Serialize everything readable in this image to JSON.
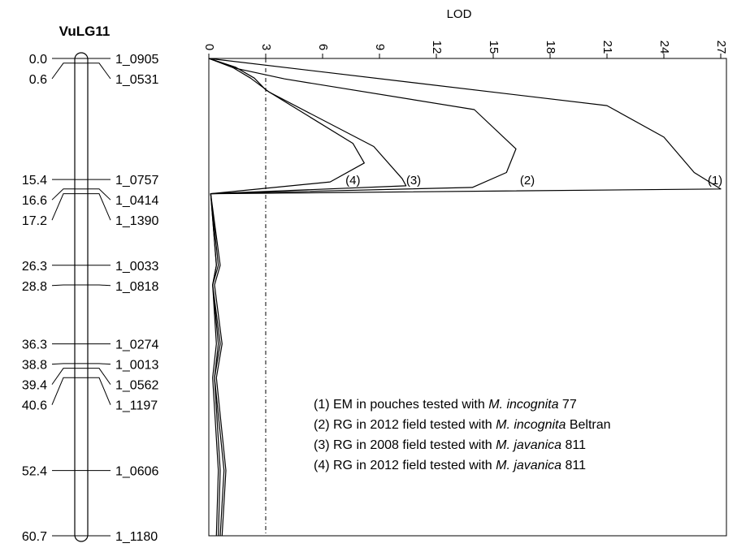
{
  "chart_data": {
    "type": "line",
    "linkage_group": {
      "title": "VuLG11",
      "markers": [
        {
          "pos": 0.0,
          "pos_label": "0.0",
          "name": "1_0905"
        },
        {
          "pos": 0.6,
          "pos_label": "0.6",
          "name": "1_0531"
        },
        {
          "pos": 15.4,
          "pos_label": "15.4",
          "name": "1_0757"
        },
        {
          "pos": 16.6,
          "pos_label": "16.6",
          "name": "1_0414"
        },
        {
          "pos": 17.2,
          "pos_label": "17.2",
          "name": "1_1390"
        },
        {
          "pos": 26.3,
          "pos_label": "26.3",
          "name": "1_0033"
        },
        {
          "pos": 28.8,
          "pos_label": "28.8",
          "name": "1_0818"
        },
        {
          "pos": 36.3,
          "pos_label": "36.3",
          "name": "1_0274"
        },
        {
          "pos": 38.8,
          "pos_label": "38.8",
          "name": "1_0013"
        },
        {
          "pos": 39.4,
          "pos_label": "39.4",
          "name": "1_0562"
        },
        {
          "pos": 40.6,
          "pos_label": "40.6",
          "name": "1_1197"
        },
        {
          "pos": 52.4,
          "pos_label": "52.4",
          "name": "1_0606"
        },
        {
          "pos": 60.7,
          "pos_label": "60.7",
          "name": "1_1180"
        }
      ]
    },
    "xlabel": "LOD",
    "xlim": [
      0,
      27.3
    ],
    "ylim": [
      0,
      60.7
    ],
    "xticks": [
      0,
      3,
      6,
      9,
      12,
      15,
      18,
      21,
      24,
      27
    ],
    "threshold": 3,
    "series": [
      {
        "id": "1",
        "label": "(1)",
        "color": "#000000",
        "points": [
          [
            0,
            0
          ],
          [
            21,
            6
          ],
          [
            24,
            10
          ],
          [
            25.6,
            14.5
          ],
          [
            27,
            16.6
          ],
          [
            0.1,
            17.2
          ],
          [
            0.4,
            26.3
          ],
          [
            0.2,
            28.8
          ],
          [
            0.5,
            36.3
          ],
          [
            0.3,
            40.6
          ],
          [
            0.6,
            52.4
          ],
          [
            0.5,
            60.7
          ]
        ]
      },
      {
        "id": "2",
        "label": "(2)",
        "color": "#000000",
        "points": [
          [
            0,
            0
          ],
          [
            1.5,
            1.3
          ],
          [
            4,
            2.6
          ],
          [
            14,
            6.5
          ],
          [
            16.2,
            11.5
          ],
          [
            15.7,
            14.5
          ],
          [
            13.9,
            16.4
          ],
          [
            0.1,
            17.2
          ],
          [
            0.5,
            26.3
          ],
          [
            0.2,
            28.8
          ],
          [
            0.6,
            36.3
          ],
          [
            0.3,
            40.6
          ],
          [
            0.8,
            52.4
          ],
          [
            0.6,
            60.7
          ]
        ]
      },
      {
        "id": "3",
        "label": "(3)",
        "color": "#000000",
        "points": [
          [
            0,
            0
          ],
          [
            1.3,
            1.2
          ],
          [
            2.2,
            2.5
          ],
          [
            3.2,
            4.3
          ],
          [
            8.7,
            11.2
          ],
          [
            10.2,
            15.3
          ],
          [
            10.4,
            16.2
          ],
          [
            0.1,
            17.2
          ],
          [
            0.6,
            26.3
          ],
          [
            0.3,
            28.8
          ],
          [
            0.7,
            36.3
          ],
          [
            0.4,
            40.6
          ],
          [
            0.9,
            52.4
          ],
          [
            0.7,
            60.7
          ]
        ]
      },
      {
        "id": "4",
        "label": "(4)",
        "color": "#000000",
        "points": [
          [
            0,
            0
          ],
          [
            1.4,
            1.1
          ],
          [
            2.4,
            2.5
          ],
          [
            3,
            4
          ],
          [
            7.6,
            10.8
          ],
          [
            8.2,
            13.3
          ],
          [
            6.4,
            15.7
          ],
          [
            0.1,
            17.2
          ],
          [
            0.4,
            26.3
          ],
          [
            0.2,
            28.8
          ],
          [
            0.4,
            36.3
          ],
          [
            0.2,
            40.6
          ],
          [
            0.5,
            52.4
          ],
          [
            0.4,
            60.7
          ]
        ]
      }
    ],
    "curve_labels": [
      {
        "text": "(1)",
        "x": 26.7,
        "y": 15.4
      },
      {
        "text": "(2)",
        "x": 16.8,
        "y": 15.4
      },
      {
        "text": "(3)",
        "x": 10.8,
        "y": 15.4
      },
      {
        "text": "(4)",
        "x": 7.6,
        "y": 15.4
      }
    ],
    "legend": [
      {
        "prefix": "(1) EM in pouches tested with ",
        "species": "M. incognita",
        "suffix": " 77"
      },
      {
        "prefix": "(2) RG in 2012 field tested with ",
        "species": "M. incognita",
        "suffix": " Beltran"
      },
      {
        "prefix": "(3) RG in 2008 field tested with ",
        "species": "M. javanica",
        "suffix": " 811"
      },
      {
        "prefix": "(4) RG in 2012 field tested with ",
        "species": "M. javanica",
        "suffix": " 811"
      }
    ]
  }
}
